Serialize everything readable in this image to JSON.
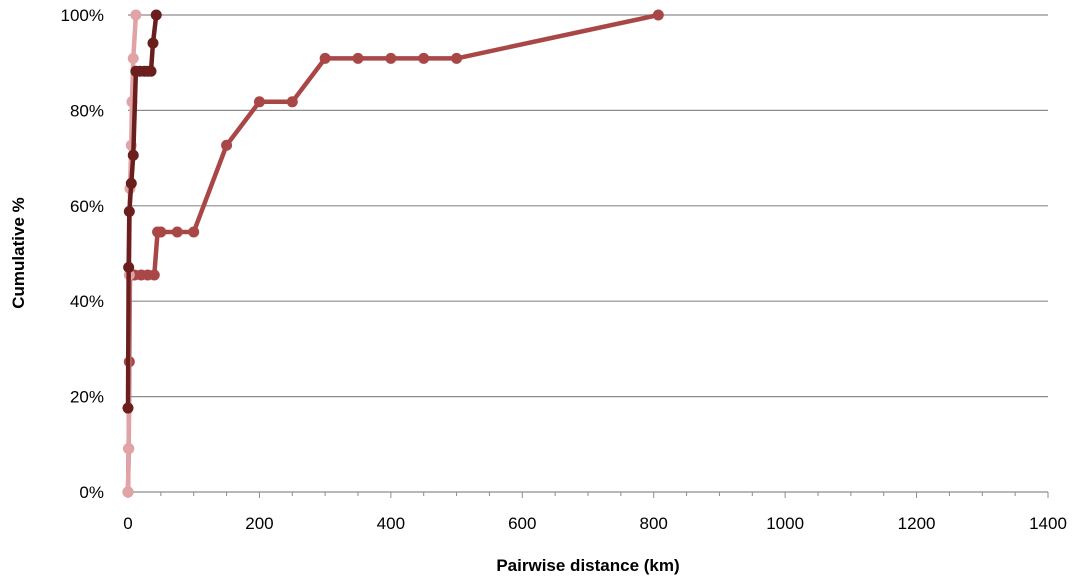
{
  "chart_data": {
    "type": "line",
    "title": "",
    "xlabel": "Pairwise distance (km)",
    "ylabel": "Cumulative %",
    "xlim": [
      0,
      1400
    ],
    "ylim": [
      0,
      1
    ],
    "x_ticks": [
      0,
      200,
      400,
      600,
      800,
      1000,
      1200,
      1400
    ],
    "x_tick_labels": [
      "0",
      "200",
      "400",
      "600",
      "800",
      "1000",
      "1200",
      "1400"
    ],
    "y_ticks": [
      0,
      0.2,
      0.4,
      0.6,
      0.8,
      1.0
    ],
    "y_tick_labels": [
      "0%",
      "20%",
      "40%",
      "60%",
      "80%",
      "100%"
    ],
    "grid": "horizontal",
    "legend": "none",
    "series": [
      {
        "color": "#A94747",
        "points": [
          [
            0,
            0
          ],
          [
            1,
            0.091
          ],
          [
            2,
            0.273
          ],
          [
            3,
            0.455
          ],
          [
            5,
            0.455
          ],
          [
            10,
            0.455
          ],
          [
            20,
            0.455
          ],
          [
            30,
            0.455
          ],
          [
            40,
            0.455
          ],
          [
            45,
            0.545
          ],
          [
            50,
            0.545
          ],
          [
            75,
            0.545
          ],
          [
            100,
            0.545
          ],
          [
            150,
            0.727
          ],
          [
            200,
            0.818
          ],
          [
            250,
            0.818
          ],
          [
            300,
            0.909
          ],
          [
            350,
            0.909
          ],
          [
            400,
            0.909
          ],
          [
            450,
            0.909
          ],
          [
            500,
            0.909
          ],
          [
            807,
            1.0
          ]
        ]
      },
      {
        "color": "#E0A3A6",
        "points": [
          [
            0,
            0
          ],
          [
            1,
            0.091
          ],
          [
            2,
            0.455
          ],
          [
            3,
            0.636
          ],
          [
            5,
            0.727
          ],
          [
            6,
            0.818
          ],
          [
            8,
            0.909
          ],
          [
            12,
            1.0
          ]
        ]
      },
      {
        "color": "#6B1E1E",
        "points": [
          [
            0,
            0.176
          ],
          [
            1,
            0.471
          ],
          [
            2,
            0.588
          ],
          [
            5,
            0.647
          ],
          [
            8,
            0.706
          ],
          [
            12,
            0.882
          ],
          [
            18,
            0.882
          ],
          [
            25,
            0.882
          ],
          [
            30,
            0.882
          ],
          [
            35,
            0.882
          ],
          [
            38,
            0.941
          ],
          [
            43,
            1.0
          ]
        ]
      }
    ]
  }
}
